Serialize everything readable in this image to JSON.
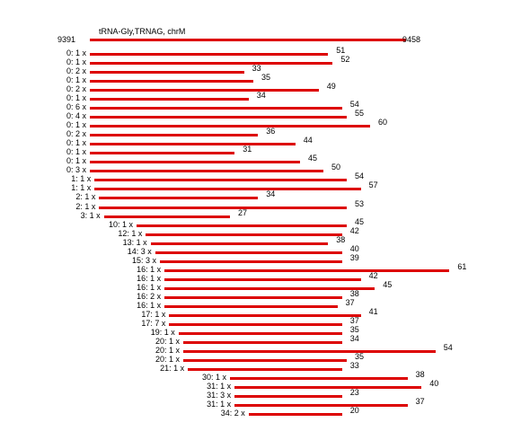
{
  "title": "tRNA-Gly,TRNAG, chrM",
  "ref": {
    "start": 9391,
    "end": 9458
  },
  "reads": [
    {
      "label": "0: 1 x",
      "offset": 0,
      "len": 51
    },
    {
      "label": "0: 1 x",
      "offset": 0,
      "len": 52
    },
    {
      "label": "0: 2 x",
      "offset": 0,
      "len": 33
    },
    {
      "label": "0: 1 x",
      "offset": 0,
      "len": 35
    },
    {
      "label": "0: 2 x",
      "offset": 0,
      "len": 49
    },
    {
      "label": "0: 1 x",
      "offset": 0,
      "len": 34
    },
    {
      "label": "0: 6 x",
      "offset": 0,
      "len": 54
    },
    {
      "label": "0: 4 x",
      "offset": 0,
      "len": 55
    },
    {
      "label": "0: 1 x",
      "offset": 0,
      "len": 60
    },
    {
      "label": "0: 2 x",
      "offset": 0,
      "len": 36
    },
    {
      "label": "0: 1 x",
      "offset": 0,
      "len": 44
    },
    {
      "label": "0: 1 x",
      "offset": 0,
      "len": 31
    },
    {
      "label": "0: 1 x",
      "offset": 0,
      "len": 45
    },
    {
      "label": "0: 3 x",
      "offset": 0,
      "len": 50
    },
    {
      "label": "1: 1 x",
      "offset": 1,
      "len": 54
    },
    {
      "label": "1: 1 x",
      "offset": 1,
      "len": 57
    },
    {
      "label": "2: 1 x",
      "offset": 2,
      "len": 34
    },
    {
      "label": "2: 1 x",
      "offset": 2,
      "len": 53
    },
    {
      "label": "3: 1 x",
      "offset": 3,
      "len": 27
    },
    {
      "label": "10: 1 x",
      "offset": 10,
      "len": 45
    },
    {
      "label": "12: 1 x",
      "offset": 12,
      "len": 42
    },
    {
      "label": "13: 1 x",
      "offset": 13,
      "len": 38
    },
    {
      "label": "14: 3 x",
      "offset": 14,
      "len": 40
    },
    {
      "label": "15: 3 x",
      "offset": 15,
      "len": 39
    },
    {
      "label": "16: 1 x",
      "offset": 16,
      "len": 61
    },
    {
      "label": "16: 1 x",
      "offset": 16,
      "len": 42
    },
    {
      "label": "16: 1 x",
      "offset": 16,
      "len": 45
    },
    {
      "label": "16: 2 x",
      "offset": 16,
      "len": 38
    },
    {
      "label": "16: 1 x",
      "offset": 16,
      "len": 37
    },
    {
      "label": "17: 1 x",
      "offset": 17,
      "len": 41
    },
    {
      "label": "17: 7 x",
      "offset": 17,
      "len": 37
    },
    {
      "label": "19: 1 x",
      "offset": 19,
      "len": 35
    },
    {
      "label": "20: 1 x",
      "offset": 20,
      "len": 34
    },
    {
      "label": "20: 1 x",
      "offset": 20,
      "len": 54
    },
    {
      "label": "20: 1 x",
      "offset": 20,
      "len": 35
    },
    {
      "label": "21: 1 x",
      "offset": 21,
      "len": 33
    },
    {
      "label": "30: 1 x",
      "offset": 30,
      "len": 38
    },
    {
      "label": "31: 1 x",
      "offset": 31,
      "len": 40
    },
    {
      "label": "31: 3 x",
      "offset": 31,
      "len": 23
    },
    {
      "label": "31: 1 x",
      "offset": 31,
      "len": 37
    },
    {
      "label": "34: 2 x",
      "offset": 34,
      "len": 20
    }
  ],
  "colors": {
    "bar": "#dd0000",
    "text": "#000000"
  }
}
